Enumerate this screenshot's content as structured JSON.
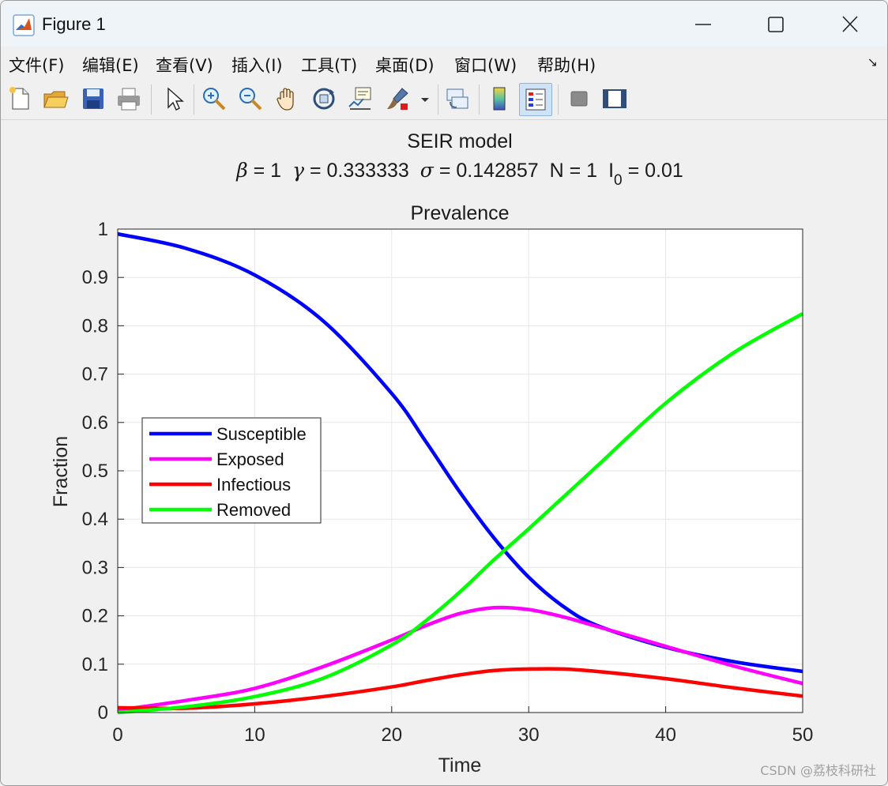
{
  "window": {
    "title": "Figure 1",
    "app_icon": "matlab-icon",
    "controls": [
      "minimize-icon",
      "maximize-icon",
      "close-icon"
    ]
  },
  "menu": {
    "items": [
      "文件(F)",
      "编辑(E)",
      "查看(V)",
      "插入(I)",
      "工具(T)",
      "桌面(D)",
      "窗口(W)",
      "帮助(H)"
    ],
    "overflow_icon": "arrow-icon"
  },
  "toolbar": {
    "buttons": [
      "new-figure-icon",
      "open-file-icon",
      "save-icon",
      "print-icon",
      "edit-plot-arrow-icon",
      "zoom-in-icon",
      "zoom-out-icon",
      "pan-hand-icon",
      "rotate-3d-icon",
      "data-cursor-icon",
      "brush-icon",
      "brush-dropdown-icon",
      "link-plot-icon",
      "colorbar-icon",
      "legend-icon",
      "hide-plot-tools-icon",
      "show-plot-tools-icon"
    ],
    "active": "legend-icon"
  },
  "figure": {
    "suptitle_line1": "SEIR model",
    "suptitle_line2": {
      "beta_symbol": "β",
      "beta_text": " = 1",
      "gamma_symbol": "γ",
      "gamma_text": " = 0.333333",
      "sigma_symbol": "σ",
      "sigma_text": " = 0.142857",
      "n_text": "N = 1",
      "i_text": "I",
      "i_subscript": "0",
      "i0_text": " = 0.01"
    }
  },
  "watermark": "CSDN @荔枝科研社",
  "colors": {
    "susceptible": "#0000ff",
    "exposed": "#ff00ff",
    "infectious": "#ff0000",
    "removed": "#00ff00",
    "grid": "#e6e6e6",
    "plot_bg": "#ffffff"
  },
  "chart_data": {
    "type": "line",
    "title": "Prevalence",
    "xlabel": "Time",
    "ylabel": "Fraction",
    "xlim": [
      0,
      50
    ],
    "ylim": [
      0,
      1
    ],
    "xticks": [
      0,
      10,
      20,
      30,
      40,
      50
    ],
    "yticks": [
      0,
      0.1,
      0.2,
      0.3,
      0.4,
      0.5,
      0.6,
      0.7,
      0.8,
      0.9,
      1
    ],
    "grid": true,
    "legend_position": "center-left",
    "x": [
      0,
      5,
      10,
      15,
      20,
      22.5,
      25,
      27.5,
      30,
      32.5,
      35,
      40,
      45,
      50
    ],
    "series": [
      {
        "name": "Susceptible",
        "color": "#0000ff",
        "values": [
          0.99,
          0.96,
          0.905,
          0.81,
          0.66,
          0.56,
          0.455,
          0.36,
          0.28,
          0.22,
          0.18,
          0.135,
          0.105,
          0.085
        ]
      },
      {
        "name": "Exposed",
        "color": "#ff00ff",
        "values": [
          0.005,
          0.025,
          0.05,
          0.095,
          0.15,
          0.18,
          0.205,
          0.217,
          0.213,
          0.198,
          0.178,
          0.137,
          0.096,
          0.06
        ]
      },
      {
        "name": "Infectious",
        "color": "#ff0000",
        "values": [
          0.01,
          0.009,
          0.018,
          0.033,
          0.053,
          0.066,
          0.078,
          0.087,
          0.09,
          0.09,
          0.085,
          0.07,
          0.051,
          0.034
        ]
      },
      {
        "name": "Removed",
        "color": "#00ff00",
        "values": [
          0.0,
          0.012,
          0.033,
          0.071,
          0.14,
          0.19,
          0.25,
          0.317,
          0.38,
          0.445,
          0.51,
          0.64,
          0.745,
          0.825
        ]
      }
    ]
  }
}
